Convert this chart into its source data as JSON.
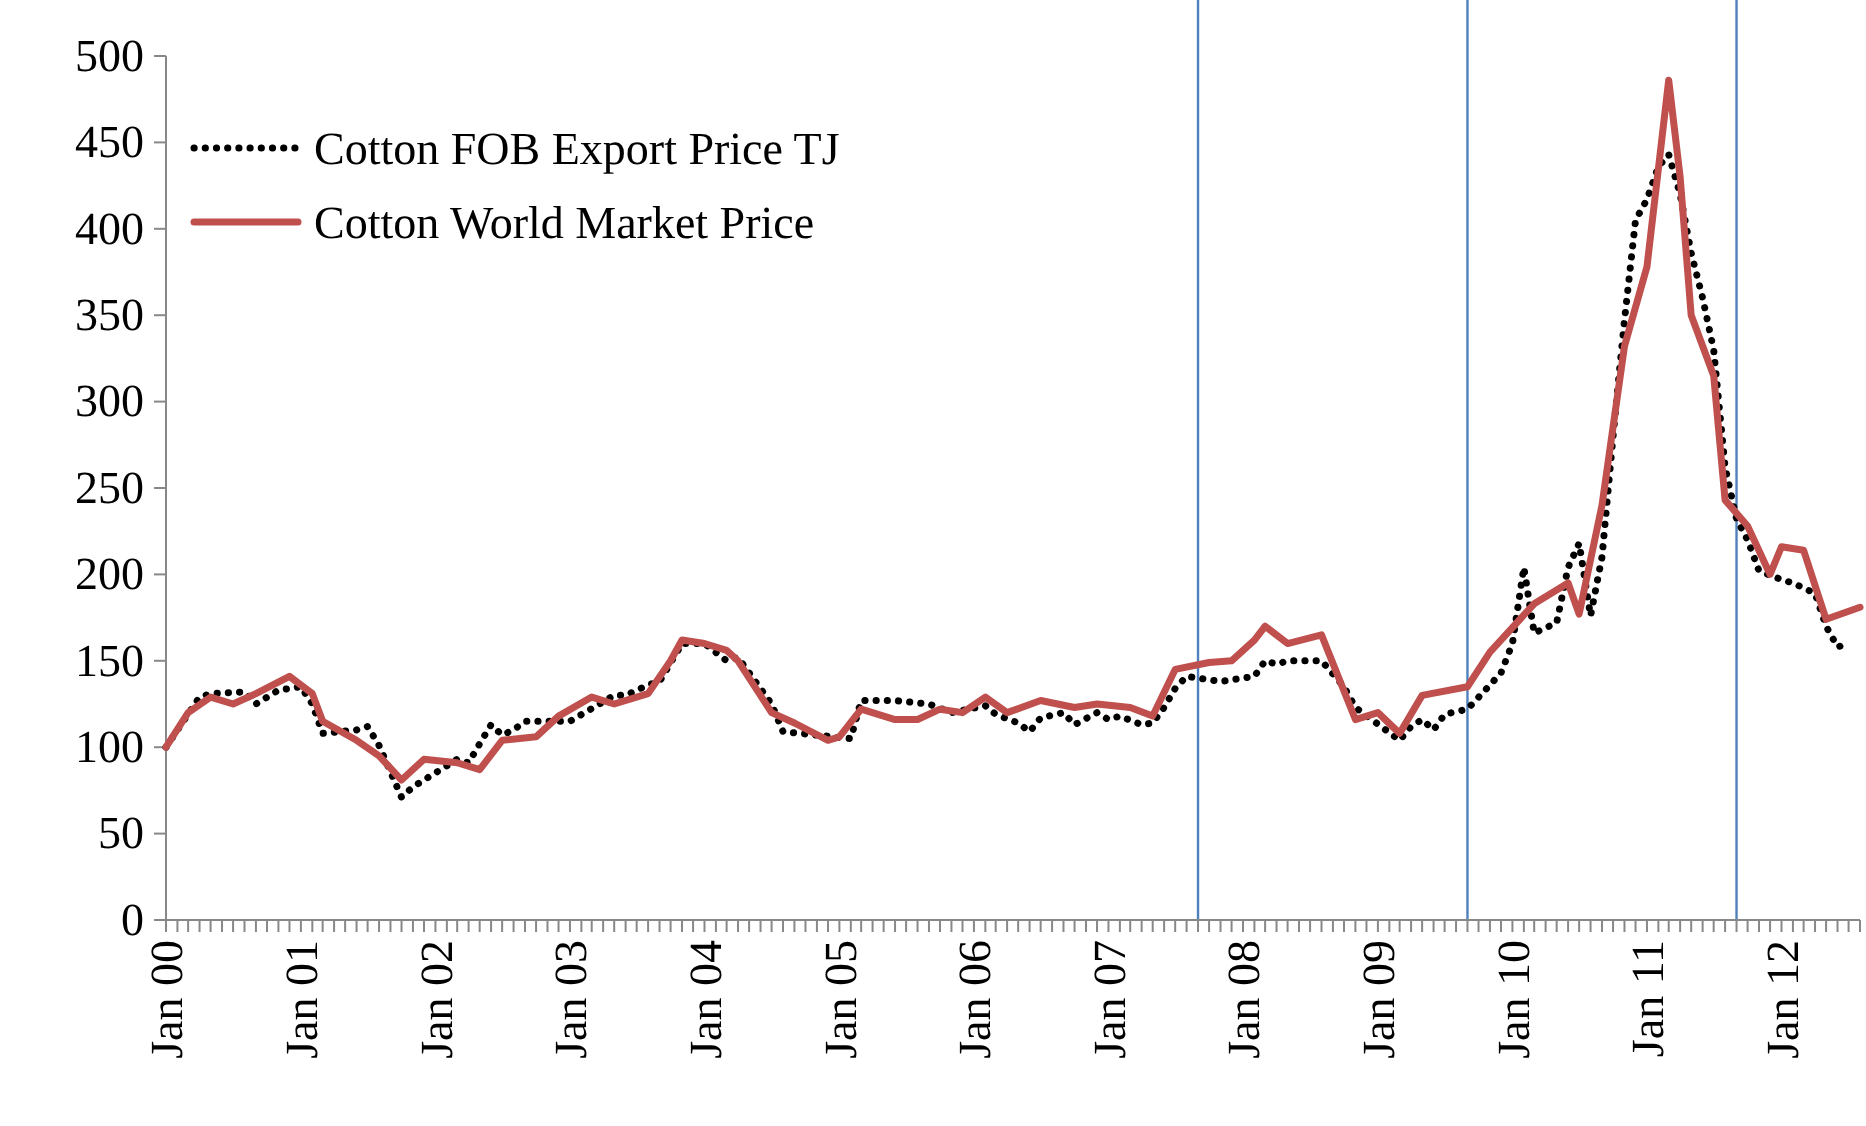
{
  "chart_data": {
    "type": "line",
    "legend": "top left",
    "grid": false,
    "ylim": [
      0,
      500
    ],
    "yticks": [
      0,
      50,
      100,
      150,
      200,
      250,
      300,
      350,
      400,
      450,
      500
    ],
    "xlim": [
      "2000-01",
      "2012-08"
    ],
    "xticks": [
      {
        "value": "2000-01",
        "label": "Jan 00"
      },
      {
        "value": "2000-02",
        "label": null
      },
      {
        "value": "2000-03",
        "label": null
      },
      {
        "value": "2000-04",
        "label": null
      },
      {
        "value": "2000-05",
        "label": null
      },
      {
        "value": "2000-06",
        "label": null
      },
      {
        "value": "2000-07",
        "label": null
      },
      {
        "value": "2000-08",
        "label": null
      },
      {
        "value": "2000-09",
        "label": null
      },
      {
        "value": "2000-10",
        "label": null
      },
      {
        "value": "2000-11",
        "label": null
      },
      {
        "value": "2000-12",
        "label": null
      },
      {
        "value": "2001-01",
        "label": "Jan 01"
      },
      {
        "value": "2001-02",
        "label": null
      },
      {
        "value": "2001-03",
        "label": null
      },
      {
        "value": "2001-04",
        "label": null
      },
      {
        "value": "2001-05",
        "label": null
      },
      {
        "value": "2001-06",
        "label": null
      },
      {
        "value": "2001-07",
        "label": null
      },
      {
        "value": "2001-08",
        "label": null
      },
      {
        "value": "2001-09",
        "label": null
      },
      {
        "value": "2001-10",
        "label": null
      },
      {
        "value": "2001-11",
        "label": null
      },
      {
        "value": "2001-12",
        "label": null
      },
      {
        "value": "2002-01",
        "label": "Jan 02"
      },
      {
        "value": "2002-02",
        "label": null
      },
      {
        "value": "2002-03",
        "label": null
      },
      {
        "value": "2002-04",
        "label": null
      },
      {
        "value": "2002-05",
        "label": null
      },
      {
        "value": "2002-06",
        "label": null
      },
      {
        "value": "2002-07",
        "label": null
      },
      {
        "value": "2002-08",
        "label": null
      },
      {
        "value": "2002-09",
        "label": null
      },
      {
        "value": "2002-10",
        "label": null
      },
      {
        "value": "2002-11",
        "label": null
      },
      {
        "value": "2002-12",
        "label": null
      },
      {
        "value": "2003-01",
        "label": "Jan 03"
      },
      {
        "value": "2003-02",
        "label": null
      },
      {
        "value": "2003-03",
        "label": null
      },
      {
        "value": "2003-04",
        "label": null
      },
      {
        "value": "2003-05",
        "label": null
      },
      {
        "value": "2003-06",
        "label": null
      },
      {
        "value": "2003-07",
        "label": null
      },
      {
        "value": "2003-08",
        "label": null
      },
      {
        "value": "2003-09",
        "label": null
      },
      {
        "value": "2003-10",
        "label": null
      },
      {
        "value": "2003-11",
        "label": null
      },
      {
        "value": "2003-12",
        "label": null
      },
      {
        "value": "2004-01",
        "label": "Jan 04"
      },
      {
        "value": "2004-02",
        "label": null
      },
      {
        "value": "2004-03",
        "label": null
      },
      {
        "value": "2004-04",
        "label": null
      },
      {
        "value": "2004-05",
        "label": null
      },
      {
        "value": "2004-06",
        "label": null
      },
      {
        "value": "2004-07",
        "label": null
      },
      {
        "value": "2004-08",
        "label": null
      },
      {
        "value": "2004-09",
        "label": null
      },
      {
        "value": "2004-10",
        "label": null
      },
      {
        "value": "2004-11",
        "label": null
      },
      {
        "value": "2004-12",
        "label": null
      },
      {
        "value": "2005-01",
        "label": "Jan 05"
      },
      {
        "value": "2005-02",
        "label": null
      },
      {
        "value": "2005-03",
        "label": null
      },
      {
        "value": "2005-04",
        "label": null
      },
      {
        "value": "2005-05",
        "label": null
      },
      {
        "value": "2005-06",
        "label": null
      },
      {
        "value": "2005-07",
        "label": null
      },
      {
        "value": "2005-08",
        "label": null
      },
      {
        "value": "2005-09",
        "label": null
      },
      {
        "value": "2005-10",
        "label": null
      },
      {
        "value": "2005-11",
        "label": null
      },
      {
        "value": "2005-12",
        "label": null
      },
      {
        "value": "2006-01",
        "label": "Jan 06"
      },
      {
        "value": "2006-02",
        "label": null
      },
      {
        "value": "2006-03",
        "label": null
      },
      {
        "value": "2006-04",
        "label": null
      },
      {
        "value": "2006-05",
        "label": null
      },
      {
        "value": "2006-06",
        "label": null
      },
      {
        "value": "2006-07",
        "label": null
      },
      {
        "value": "2006-08",
        "label": null
      },
      {
        "value": "2006-09",
        "label": null
      },
      {
        "value": "2006-10",
        "label": null
      },
      {
        "value": "2006-11",
        "label": null
      },
      {
        "value": "2006-12",
        "label": null
      },
      {
        "value": "2007-01",
        "label": "Jan 07"
      },
      {
        "value": "2007-02",
        "label": null
      },
      {
        "value": "2007-03",
        "label": null
      },
      {
        "value": "2007-04",
        "label": null
      },
      {
        "value": "2007-05",
        "label": null
      },
      {
        "value": "2007-06",
        "label": null
      },
      {
        "value": "2007-07",
        "label": null
      },
      {
        "value": "2007-08",
        "label": null
      },
      {
        "value": "2007-09",
        "label": null
      },
      {
        "value": "2007-10",
        "label": null
      },
      {
        "value": "2007-11",
        "label": null
      },
      {
        "value": "2007-12",
        "label": null
      },
      {
        "value": "2008-01",
        "label": "Jan 08"
      },
      {
        "value": "2008-02",
        "label": null
      },
      {
        "value": "2008-03",
        "label": null
      },
      {
        "value": "2008-04",
        "label": null
      },
      {
        "value": "2008-05",
        "label": null
      },
      {
        "value": "2008-06",
        "label": null
      },
      {
        "value": "2008-07",
        "label": null
      },
      {
        "value": "2008-08",
        "label": null
      },
      {
        "value": "2008-09",
        "label": null
      },
      {
        "value": "2008-10",
        "label": null
      },
      {
        "value": "2008-11",
        "label": null
      },
      {
        "value": "2008-12",
        "label": null
      },
      {
        "value": "2009-01",
        "label": "Jan 09"
      },
      {
        "value": "2009-02",
        "label": null
      },
      {
        "value": "2009-03",
        "label": null
      },
      {
        "value": "2009-04",
        "label": null
      },
      {
        "value": "2009-05",
        "label": null
      },
      {
        "value": "2009-06",
        "label": null
      },
      {
        "value": "2009-07",
        "label": null
      },
      {
        "value": "2009-08",
        "label": null
      },
      {
        "value": "2009-09",
        "label": null
      },
      {
        "value": "2009-10",
        "label": null
      },
      {
        "value": "2009-11",
        "label": null
      },
      {
        "value": "2009-12",
        "label": null
      },
      {
        "value": "2010-01",
        "label": "Jan 10"
      },
      {
        "value": "2010-02",
        "label": null
      },
      {
        "value": "2010-03",
        "label": null
      },
      {
        "value": "2010-04",
        "label": null
      },
      {
        "value": "2010-05",
        "label": null
      },
      {
        "value": "2010-06",
        "label": null
      },
      {
        "value": "2010-07",
        "label": null
      },
      {
        "value": "2010-08",
        "label": null
      },
      {
        "value": "2010-09",
        "label": null
      },
      {
        "value": "2010-10",
        "label": null
      },
      {
        "value": "2010-11",
        "label": null
      },
      {
        "value": "2010-12",
        "label": null
      },
      {
        "value": "2011-01",
        "label": "Jan 11"
      },
      {
        "value": "2011-02",
        "label": null
      },
      {
        "value": "2011-03",
        "label": null
      },
      {
        "value": "2011-04",
        "label": null
      },
      {
        "value": "2011-05",
        "label": null
      },
      {
        "value": "2011-06",
        "label": null
      },
      {
        "value": "2011-07",
        "label": null
      },
      {
        "value": "2011-08",
        "label": null
      },
      {
        "value": "2011-09",
        "label": null
      },
      {
        "value": "2011-10",
        "label": null
      },
      {
        "value": "2011-11",
        "label": null
      },
      {
        "value": "2011-12",
        "label": null
      },
      {
        "value": "2012-01",
        "label": "Jan 12"
      },
      {
        "value": "2012-02",
        "label": null
      },
      {
        "value": "2012-03",
        "label": null
      },
      {
        "value": "2012-04",
        "label": null
      },
      {
        "value": "2012-05",
        "label": null
      },
      {
        "value": "2012-06",
        "label": null
      },
      {
        "value": "2012-07",
        "label": null
      },
      {
        "value": "2012-08",
        "label": null
      }
    ],
    "ref_lines": [
      {
        "axis": "x",
        "value": "2007-09",
        "color": "#4f81bd"
      },
      {
        "axis": "x",
        "value": "2009-09",
        "color": "#4f81bd"
      },
      {
        "axis": "x",
        "value": "2011-09",
        "color": "#4f81bd"
      }
    ],
    "series": [
      {
        "name": "Cotton FOB Export Price TJ",
        "color": "#000000",
        "line_style": "dotted",
        "x": [
          "2000-01",
          "2000-04",
          "2000-05",
          "2000-08",
          "2000-09",
          "2000-11",
          "2001-01",
          "2001-02",
          "2001-03",
          "2001-06",
          "2001-07",
          "2001-08",
          "2001-10",
          "2001-11",
          "2002-03",
          "2002-04",
          "2002-05",
          "2002-06",
          "2002-07",
          "2002-08",
          "2002-09",
          "2003-01",
          "2003-05",
          "2003-06",
          "2003-08",
          "2003-09",
          "2003-11",
          "2004-01",
          "2004-03",
          "2004-04",
          "2004-07",
          "2004-08",
          "2005-02",
          "2005-03",
          "2005-04",
          "2005-06",
          "2005-09",
          "2005-11",
          "2006-02",
          "2006-03",
          "2006-05",
          "2006-06",
          "2006-07",
          "2006-09",
          "2006-10",
          "2006-12",
          "2007-01",
          "2007-02",
          "2007-04",
          "2007-05",
          "2007-06",
          "2007-07",
          "2007-08",
          "2007-11",
          "2007-12",
          "2008-02",
          "2008-03",
          "2008-04",
          "2008-05",
          "2008-08",
          "2008-10",
          "2008-11",
          "2009-03",
          "2009-04",
          "2009-05",
          "2009-06",
          "2009-07",
          "2009-09",
          "2009-11",
          "2009-12",
          "2010-01",
          "2010-02",
          "2010-03",
          "2010-05",
          "2010-06",
          "2010-07",
          "2010-08",
          "2010-09",
          "2010-10",
          "2010-11",
          "2010-12",
          "2011-01",
          "2011-02",
          "2011-03",
          "2011-04",
          "2011-05",
          "2011-06",
          "2011-07",
          "2011-08",
          "2011-09",
          "2011-10",
          "2011-11",
          "2012-01",
          "2012-02",
          "2012-04",
          "2012-05",
          "2012-06",
          "2012-07"
        ],
        "values": [
          100,
          129,
          131,
          132,
          125,
          133,
          135,
          125,
          108,
          110,
          112,
          101,
          71,
          77,
          93,
          91,
          102,
          113,
          107,
          110,
          115,
          115,
          130,
          130,
          136,
          138,
          160,
          160,
          150,
          152,
          125,
          109,
          105,
          127,
          127,
          127,
          125,
          120,
          124,
          119,
          114,
          109,
          117,
          120,
          113,
          120,
          116,
          118,
          113,
          114,
          123,
          134,
          141,
          138,
          139,
          141,
          150,
          148,
          150,
          150,
          135,
          123,
          104,
          112,
          116,
          110,
          119,
          122,
          136,
          143,
          160,
          204,
          166,
          172,
          204,
          218,
          176,
          210,
          280,
          347,
          405,
          417,
          436,
          443,
          420,
          386,
          360,
          330,
          262,
          232,
          220,
          202,
          197,
          195,
          189,
          170,
          158,
          160
        ]
      },
      {
        "name": "Cotton World Market Price",
        "color": "#c0504d",
        "line_style": "solid",
        "x": [
          "2000-01",
          "2000-03",
          "2000-05",
          "2000-07",
          "2000-09",
          "2000-12",
          "2001-02",
          "2001-03",
          "2001-06",
          "2001-08",
          "2001-10",
          "2001-12",
          "2002-03",
          "2002-05",
          "2002-07",
          "2002-10",
          "2002-12",
          "2003-03",
          "2003-05",
          "2003-08",
          "2003-10",
          "2003-11",
          "2004-01",
          "2004-03",
          "2004-04",
          "2004-07",
          "2004-09",
          "2004-12",
          "2005-01",
          "2005-03",
          "2005-06",
          "2005-08",
          "2005-10",
          "2005-12",
          "2006-02",
          "2006-04",
          "2006-07",
          "2006-10",
          "2006-12",
          "2007-03",
          "2007-05",
          "2007-07",
          "2007-10",
          "2007-12",
          "2008-02",
          "2008-03",
          "2008-05",
          "2008-08",
          "2008-11",
          "2009-01",
          "2009-03",
          "2009-05",
          "2009-09",
          "2009-11",
          "2010-03",
          "2010-06",
          "2010-07",
          "2010-09",
          "2010-11",
          "2011-01",
          "2011-03",
          "2011-04",
          "2011-05",
          "2011-07",
          "2011-08",
          "2011-10",
          "2011-12",
          "2012-01",
          "2012-03",
          "2012-05",
          "2012-08"
        ],
        "values": [
          100,
          120,
          129,
          125,
          131,
          141,
          131,
          115,
          104,
          95,
          81,
          93,
          91,
          87,
          104,
          106,
          118,
          129,
          125,
          131,
          150,
          162,
          160,
          156,
          150,
          120,
          114,
          104,
          106,
          122,
          116,
          116,
          122,
          120,
          129,
          120,
          127,
          123,
          125,
          123,
          118,
          145,
          149,
          150,
          162,
          170,
          160,
          165,
          116,
          120,
          108,
          130,
          135,
          155,
          183,
          195,
          177,
          240,
          332,
          378,
          486,
          430,
          350,
          315,
          243,
          228,
          200,
          216,
          214,
          174,
          181
        ]
      }
    ]
  }
}
